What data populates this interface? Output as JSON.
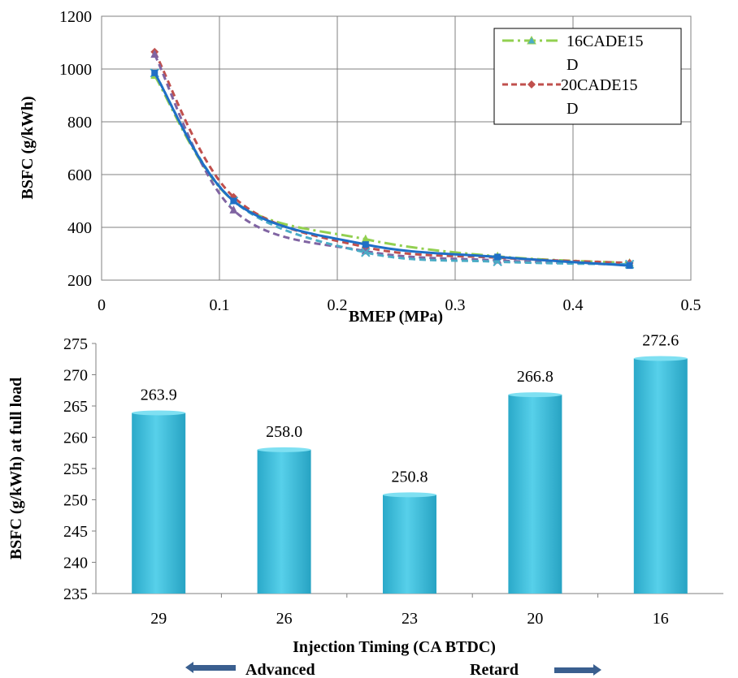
{
  "chart_data": [
    {
      "type": "line",
      "title": "",
      "xlabel": "BMEP (MPa)",
      "ylabel": "BSFC  (g/kWh)",
      "xlim": [
        0,
        0.5
      ],
      "ylim": [
        200,
        1200
      ],
      "xticks": [
        "0",
        "0.1",
        "0.2",
        "0.3",
        "0.4",
        "0.5"
      ],
      "yticks": [
        "200",
        "400",
        "600",
        "800",
        "1000",
        "1200"
      ],
      "grid": true,
      "legend_position": "top-right",
      "series": [
        {
          "name": "16CADE15D",
          "color": "#92d050",
          "dash": "dashdot",
          "marker": "triangle",
          "x": [
            0.045,
            0.112,
            0.224,
            0.336,
            0.448
          ],
          "y": [
            975,
            500,
            355,
            290,
            265
          ]
        },
        {
          "name": "20CADE15D",
          "color": "#c0504d",
          "dash": "dash",
          "marker": "diamond",
          "x": [
            0.045,
            0.112,
            0.224,
            0.336,
            0.448
          ],
          "y": [
            1065,
            515,
            325,
            285,
            265
          ]
        },
        {
          "name": "",
          "color": "#8064a2",
          "dash": "dash",
          "marker": "triangle",
          "x": [
            0.045,
            0.112,
            0.224,
            0.336,
            0.448
          ],
          "y": [
            1055,
            465,
            310,
            275,
            258
          ]
        },
        {
          "name": "",
          "color": "#4bacc6",
          "dash": "dash",
          "marker": "x",
          "x": [
            0.045,
            0.112,
            0.224,
            0.336,
            0.448
          ],
          "y": [
            985,
            500,
            305,
            270,
            260
          ]
        },
        {
          "name": "",
          "color": "#1f6fc6",
          "dash": "solid",
          "marker": "square",
          "x": [
            0.045,
            0.112,
            0.224,
            0.336,
            0.448
          ],
          "y": [
            985,
            500,
            335,
            288,
            255
          ]
        }
      ]
    },
    {
      "type": "bar",
      "title": "",
      "xlabel": "Injection Timing (CA BTDC)",
      "ylabel": "BSFC  (g/kWh) at full load",
      "ylim": [
        235,
        275
      ],
      "yticks": [
        "235",
        "240",
        "245",
        "250",
        "255",
        "260",
        "265",
        "270",
        "275"
      ],
      "categories": [
        "29",
        "26",
        "23",
        "20",
        "16"
      ],
      "values": [
        263.9,
        258.0,
        250.8,
        266.8,
        272.6
      ],
      "value_labels": [
        "263.9",
        "258.0",
        "250.8",
        "266.8",
        "272.6"
      ],
      "bar_color": "#3fbfdd",
      "annotations": {
        "left_arrow_label": "Advanced",
        "right_arrow_label": "Retard",
        "arrow_color": "#3a5f8f"
      }
    }
  ]
}
